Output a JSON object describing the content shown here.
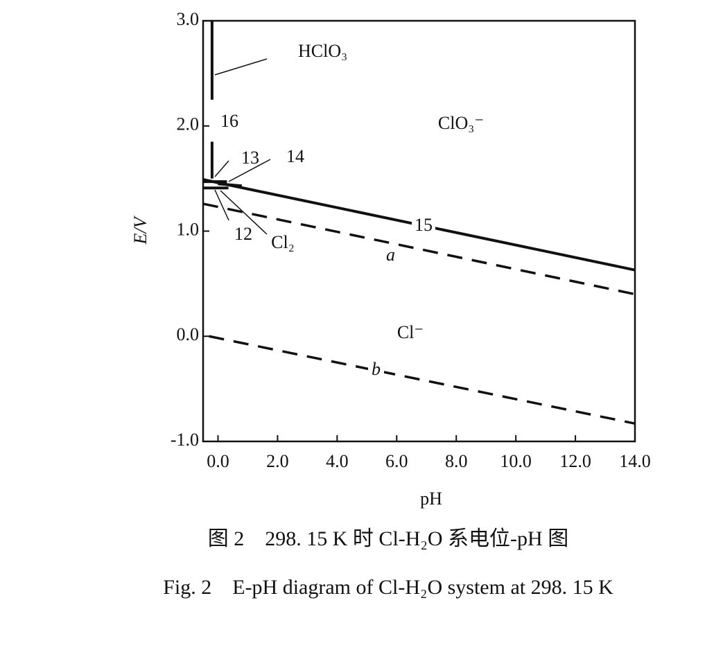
{
  "chart_data": {
    "type": "line",
    "ylabel": "E/V",
    "xlabel": "pH",
    "xlim": [
      -0.5,
      14
    ],
    "ylim": [
      -1,
      3
    ],
    "xticks": [
      {
        "value": 0,
        "label": "0.0"
      },
      {
        "value": 2,
        "label": "2.0"
      },
      {
        "value": 4,
        "label": "4.0"
      },
      {
        "value": 6,
        "label": "6.0"
      },
      {
        "value": 8,
        "label": "8.0"
      },
      {
        "value": 10,
        "label": "10.0"
      },
      {
        "value": 12,
        "label": "12.0"
      },
      {
        "value": 14,
        "label": "14.0"
      }
    ],
    "yticks": [
      {
        "value": -1,
        "label": "-1.0"
      },
      {
        "value": 0,
        "label": "0.0"
      },
      {
        "value": 1,
        "label": "1.0"
      },
      {
        "value": 2,
        "label": "2.0"
      },
      {
        "value": 3,
        "label": "3.0"
      }
    ],
    "series": [
      {
        "name": "16",
        "color": "#111111",
        "style": "solid",
        "x": [
          -0.2,
          -0.2,
          -0.2,
          -0.2,
          -0.2
        ],
        "values": [
          3.0,
          2.25,
          null,
          1.85,
          1.5
        ]
      },
      {
        "name": "15",
        "color": "#111111",
        "style": "solid",
        "x": [
          -0.5,
          14
        ],
        "values": [
          1.49,
          0.63
        ]
      },
      {
        "name": "13",
        "color": "#111111",
        "style": "solid",
        "x": [
          -0.5,
          0.3
        ],
        "values": [
          1.47,
          1.47
        ]
      },
      {
        "name": "14",
        "color": "#111111",
        "style": "solid",
        "x": [
          0.0,
          0.8
        ],
        "values": [
          1.45,
          1.43
        ]
      },
      {
        "name": "12",
        "color": "#111111",
        "style": "solid",
        "x": [
          -0.5,
          0.35
        ],
        "values": [
          1.41,
          1.41
        ]
      },
      {
        "name": "a",
        "color": "#111111",
        "style": "dashed",
        "x": [
          -0.5,
          14
        ],
        "values": [
          1.26,
          0.4
        ]
      },
      {
        "name": "b",
        "color": "#111111",
        "style": "dashed",
        "x": [
          -0.3,
          14
        ],
        "values": [
          0.0,
          -0.83
        ]
      }
    ],
    "regions": [
      "HClO₃",
      "ClO₃⁻",
      "Cl⁻",
      "Cl₂"
    ],
    "caption_cn": "图 2　298. 15 K 时 Cl-H₂O 系电位-pH 图",
    "caption_en": "Fig. 2　E-pH diagram of Cl-H₂O system at 298. 15 K"
  }
}
